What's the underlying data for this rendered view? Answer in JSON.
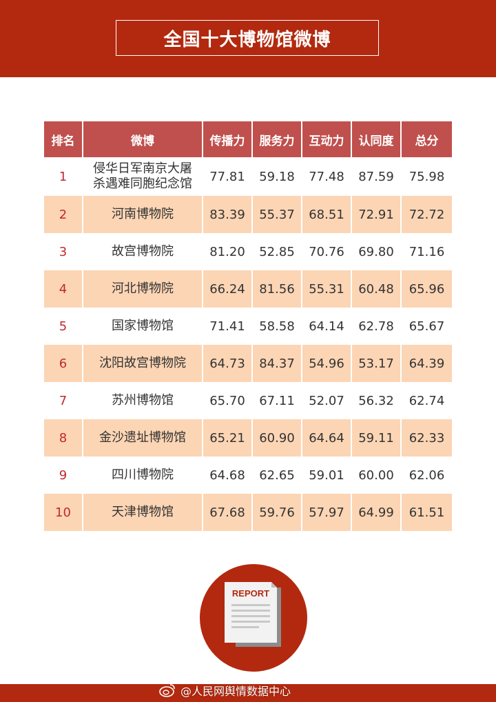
{
  "title": "全国十大博物馆微博",
  "headers": [
    "排名",
    "微博",
    "传播力",
    "服务力",
    "互动力",
    "认同度",
    "总分"
  ],
  "rows": [
    {
      "rank": "1",
      "name": "侵华日军南京大屠\n杀遇难同胞纪念馆",
      "spread": "77.81",
      "service": "59.18",
      "interaction": "77.48",
      "recognition": "87.59",
      "total": "75.98"
    },
    {
      "rank": "2",
      "name": "河南博物院",
      "spread": "83.39",
      "service": "55.37",
      "interaction": "68.51",
      "recognition": "72.91",
      "total": "72.72"
    },
    {
      "rank": "3",
      "name": "故宫博物院",
      "spread": "81.20",
      "service": "52.85",
      "interaction": "70.76",
      "recognition": "69.80",
      "total": "71.16"
    },
    {
      "rank": "4",
      "name": "河北博物院",
      "spread": "66.24",
      "service": "81.56",
      "interaction": "55.31",
      "recognition": "60.48",
      "total": "65.96"
    },
    {
      "rank": "5",
      "name": "国家博物馆",
      "spread": "71.41",
      "service": "58.58",
      "interaction": "64.14",
      "recognition": "62.78",
      "total": "65.67"
    },
    {
      "rank": "6",
      "name": "沈阳故宫博物院",
      "spread": "64.73",
      "service": "84.37",
      "interaction": "54.96",
      "recognition": "53.17",
      "total": "64.39"
    },
    {
      "rank": "7",
      "name": "苏州博物馆",
      "spread": "65.70",
      "service": "67.11",
      "interaction": "52.07",
      "recognition": "56.32",
      "total": "62.74"
    },
    {
      "rank": "8",
      "name": "金沙遗址博物馆",
      "spread": "65.21",
      "service": "60.90",
      "interaction": "64.64",
      "recognition": "59.11",
      "total": "62.33"
    },
    {
      "rank": "9",
      "name": "四川博物院",
      "spread": "64.68",
      "service": "62.65",
      "interaction": "59.01",
      "recognition": "60.00",
      "total": "62.06"
    },
    {
      "rank": "10",
      "name": "天津博物馆",
      "spread": "67.68",
      "service": "59.76",
      "interaction": "57.97",
      "recognition": "64.99",
      "total": "61.51"
    }
  ],
  "report_label": "REPORT",
  "watermark": "@人民网舆情数据中心",
  "colors": {
    "brand_red": "#b3290f",
    "header_red": "#c0504d",
    "stripe_peach": "#fcd5b4",
    "rank_red": "#c0282d"
  },
  "icons": [
    "report-document-icon",
    "weibo-logo-icon"
  ]
}
